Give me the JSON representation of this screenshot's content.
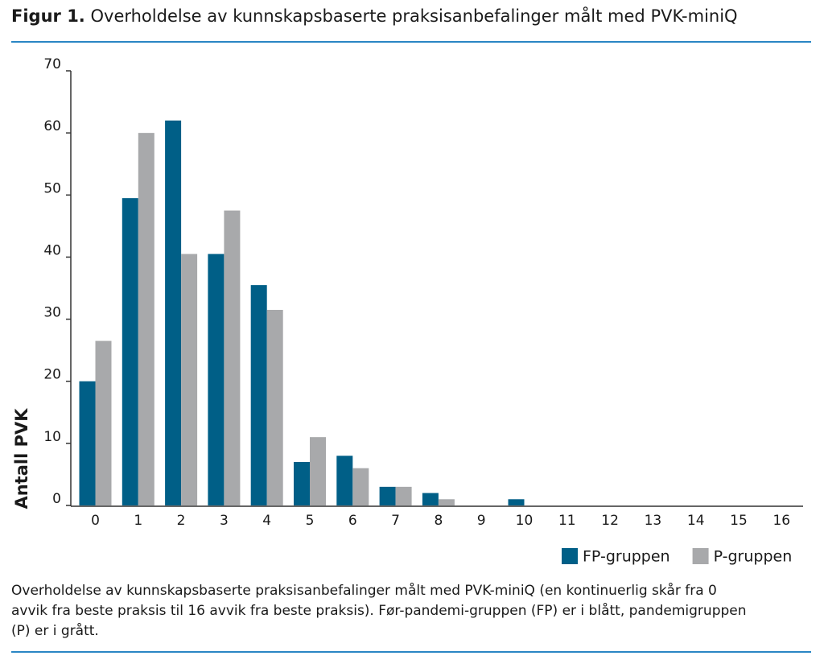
{
  "chart_data": {
    "type": "bar",
    "figure_label": "Figur 1.",
    "title": "Overholdelse av kunnskapsbaserte praksisanbefalinger målt med PVK-miniQ",
    "y_label": "Antall PVK",
    "categories": [
      "0",
      "1",
      "2",
      "3",
      "4",
      "5",
      "6",
      "7",
      "8",
      "9",
      "10",
      "11",
      "12",
      "13",
      "14",
      "15",
      "16"
    ],
    "series": [
      {
        "name": "FP-gruppen",
        "color": "#005f87",
        "values": [
          20,
          49.5,
          62,
          40.5,
          35.5,
          7,
          8,
          3,
          2,
          0,
          1,
          0,
          0,
          0,
          0,
          0,
          0
        ]
      },
      {
        "name": "P-gruppen",
        "color": "#a8a9ab",
        "values": [
          26.5,
          60,
          40.5,
          47.5,
          31.5,
          11,
          6,
          3,
          1,
          0,
          0,
          0,
          0,
          0,
          0,
          0,
          0
        ]
      }
    ],
    "ylim": [
      0,
      70
    ],
    "yticks": [
      0,
      10,
      20,
      30,
      40,
      50,
      60,
      70
    ],
    "legend_position": "bottom-right",
    "caption": "Overholdelse av kunnskapsbaserte praksisanbefalinger målt med PVK-miniQ (en kontinuerlig skår fra 0 avvik fra beste praksis til 16 avvik fra beste praksis). Før-pandemi-gruppen (FP) er i blått, pandemigruppen (P) er i grått."
  }
}
